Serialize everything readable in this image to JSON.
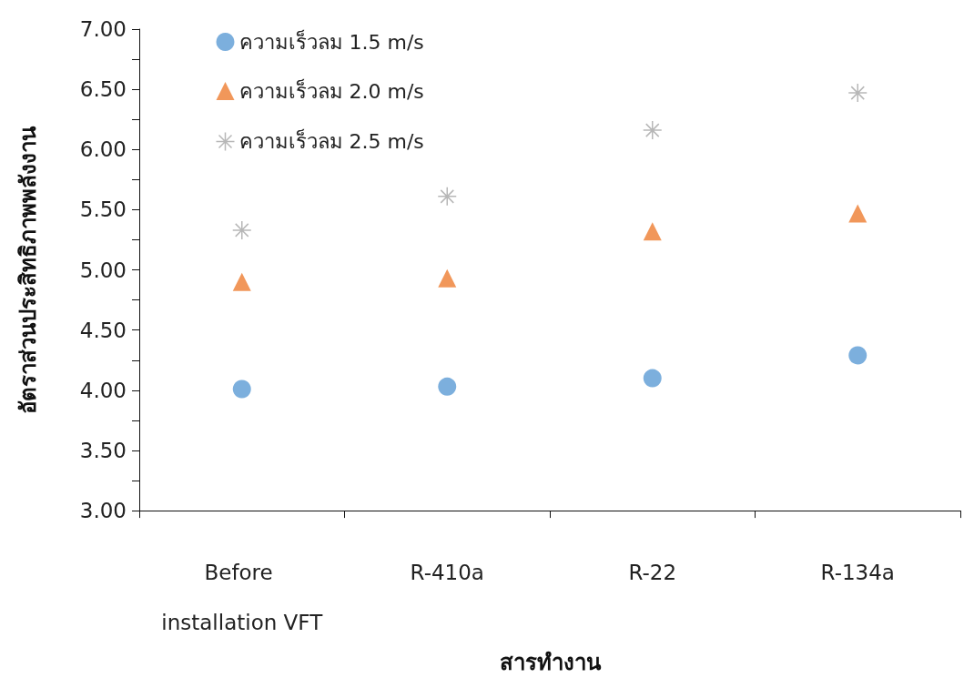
{
  "chart_data": {
    "type": "scatter",
    "xlabel": "สารทำงาน",
    "ylabel": "อัตราส่วนประสิทธิภาพพลังงาน",
    "categories": [
      "Before installation VFT",
      "R-410a",
      "R-22",
      "R-134a"
    ],
    "series": [
      {
        "name": "ความเร็วลม 1.5 m/s",
        "color": "#5b9bd5",
        "marker": "circle",
        "values": [
          4.01,
          4.03,
          4.1,
          4.29
        ]
      },
      {
        "name": "ความเร็วลม 2.0 m/s",
        "color": "#ed7d31",
        "marker": "triangle",
        "values": [
          4.9,
          4.93,
          5.32,
          5.47
        ]
      },
      {
        "name": "ความเร็วลม 2.5 m/s",
        "color": "#a5a5a5",
        "marker": "cross",
        "values": [
          5.33,
          5.61,
          6.16,
          6.47
        ]
      }
    ],
    "ylim": [
      3,
      7
    ],
    "yticks": [
      {
        "value": 3,
        "label": "3.00"
      },
      {
        "value": 3.25,
        "label": null
      },
      {
        "value": 3.5,
        "label": "3.50"
      },
      {
        "value": 3.75,
        "label": null
      },
      {
        "value": 4,
        "label": "4.00"
      },
      {
        "value": 4.25,
        "label": null
      },
      {
        "value": 4.5,
        "label": "4.50"
      },
      {
        "value": 4.75,
        "label": null
      },
      {
        "value": 5,
        "label": "5.00"
      },
      {
        "value": 5.25,
        "label": null
      },
      {
        "value": 5.5,
        "label": "5.50"
      },
      {
        "value": 5.75,
        "label": null
      },
      {
        "value": 6,
        "label": "6.00"
      },
      {
        "value": 6.25,
        "label": null
      },
      {
        "value": 6.5,
        "label": "6.50"
      },
      {
        "value": 6.75,
        "label": null
      },
      {
        "value": 7,
        "label": "7.00"
      }
    ],
    "grid": false,
    "legend": "top left"
  }
}
